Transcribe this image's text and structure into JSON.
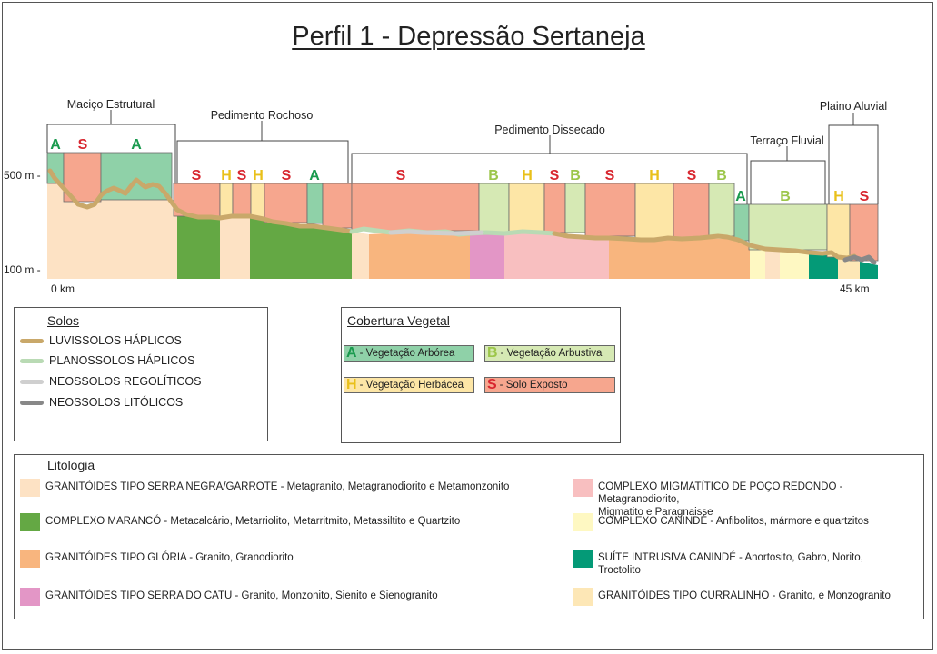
{
  "title": "Perfil 1 - Depressão Sertaneja",
  "axis": {
    "y500": "500 m -",
    "y100": "100 m -",
    "x0": "0 km",
    "x45": "45 km"
  },
  "units": [
    {
      "name": "Maciço Estrutural"
    },
    {
      "name": "Pedimento Rochoso"
    },
    {
      "name": "Pedimento Dissecado"
    },
    {
      "name": "Terraço Fluvial"
    },
    {
      "name": "Plaino Aluvial"
    }
  ],
  "veg_letters": [
    "A",
    "S",
    "A",
    "S",
    "H",
    "S",
    "H",
    "S",
    "A",
    "S",
    "B",
    "H",
    "S",
    "B",
    "S",
    "H",
    "S",
    "B",
    "A",
    "B",
    "H",
    "S"
  ],
  "colors": {
    "A": "#8fd1a8",
    "B": "#d6e9b4",
    "H": "#fde6a6",
    "S": "#f6a68e",
    "A_text": "#1a9a4e",
    "B_text": "#9cc64a",
    "H_text": "#e9c01a",
    "S_text": "#d8262f",
    "luvissolos": "#c9a86a",
    "planossolos": "#b9dab4",
    "neossolos_regoliticos": "#cfcfcf",
    "neossolos_liticos": "#888888",
    "granitoides_serra_negra": "#fde2c4",
    "maranco": "#64a844",
    "gloria": "#f8b57e",
    "serra_do_catu": "#e396c6",
    "poco_redondo": "#f8bfc0",
    "caninde": "#fef8c2",
    "suite_caninde": "#049a77",
    "curralinho": "#fde7b6"
  },
  "solos": {
    "title": "Solos",
    "items": [
      "LUVISSOLOS HÁPLICOS",
      "PLANOSSOLOS HÁPLICOS",
      "NEOSSOLOS REGOLÍTICOS",
      "NEOSSOLOS LITÓLICOS"
    ]
  },
  "cobertura": {
    "title": "Cobertura Vegetal",
    "items": [
      {
        "letter": "A",
        "label": "- Vegetação Arbórea"
      },
      {
        "letter": "B",
        "label": "- Vegetação Arbustiva"
      },
      {
        "letter": "H",
        "label": "- Vegetação Herbácea"
      },
      {
        "letter": "S",
        "label": "- Solo Exposto"
      }
    ]
  },
  "litologia": {
    "title": "Litologia",
    "items": [
      {
        "label": "GRANITÓIDES TIPO SERRA NEGRA/GARROTE - Metagranito, Metagranodiorito e Metamonzonito"
      },
      {
        "label": "COMPLEXO MARANCÓ - Metacalcário, Metarriolito, Metarritmito, Metassiltito e Quartzito"
      },
      {
        "label": "GRANITÓIDES TIPO GLÓRIA - Granito, Granodiorito"
      },
      {
        "label": "GRANITÓIDES TIPO SERRA DO CATU - Granito, Monzonito, Sienito e Sienogranito"
      },
      {
        "label": "COMPLEXO MIGMATÍTICO DE POÇO REDONDO - Metagranodiorito,",
        "label2": "Migmatito e Paragnaisse"
      },
      {
        "label": "COMPLEXO CANINDÉ - Anfibolitos, mármore e quartzitos"
      },
      {
        "label": "SUÍTE INTRUSIVA CANINDÉ - Anortosito, Gabro, Norito,",
        "label2": "Troctolito"
      },
      {
        "label": "GRANITÓIDES TIPO CURRALINHO - Granito, e Monzogranito"
      }
    ]
  }
}
